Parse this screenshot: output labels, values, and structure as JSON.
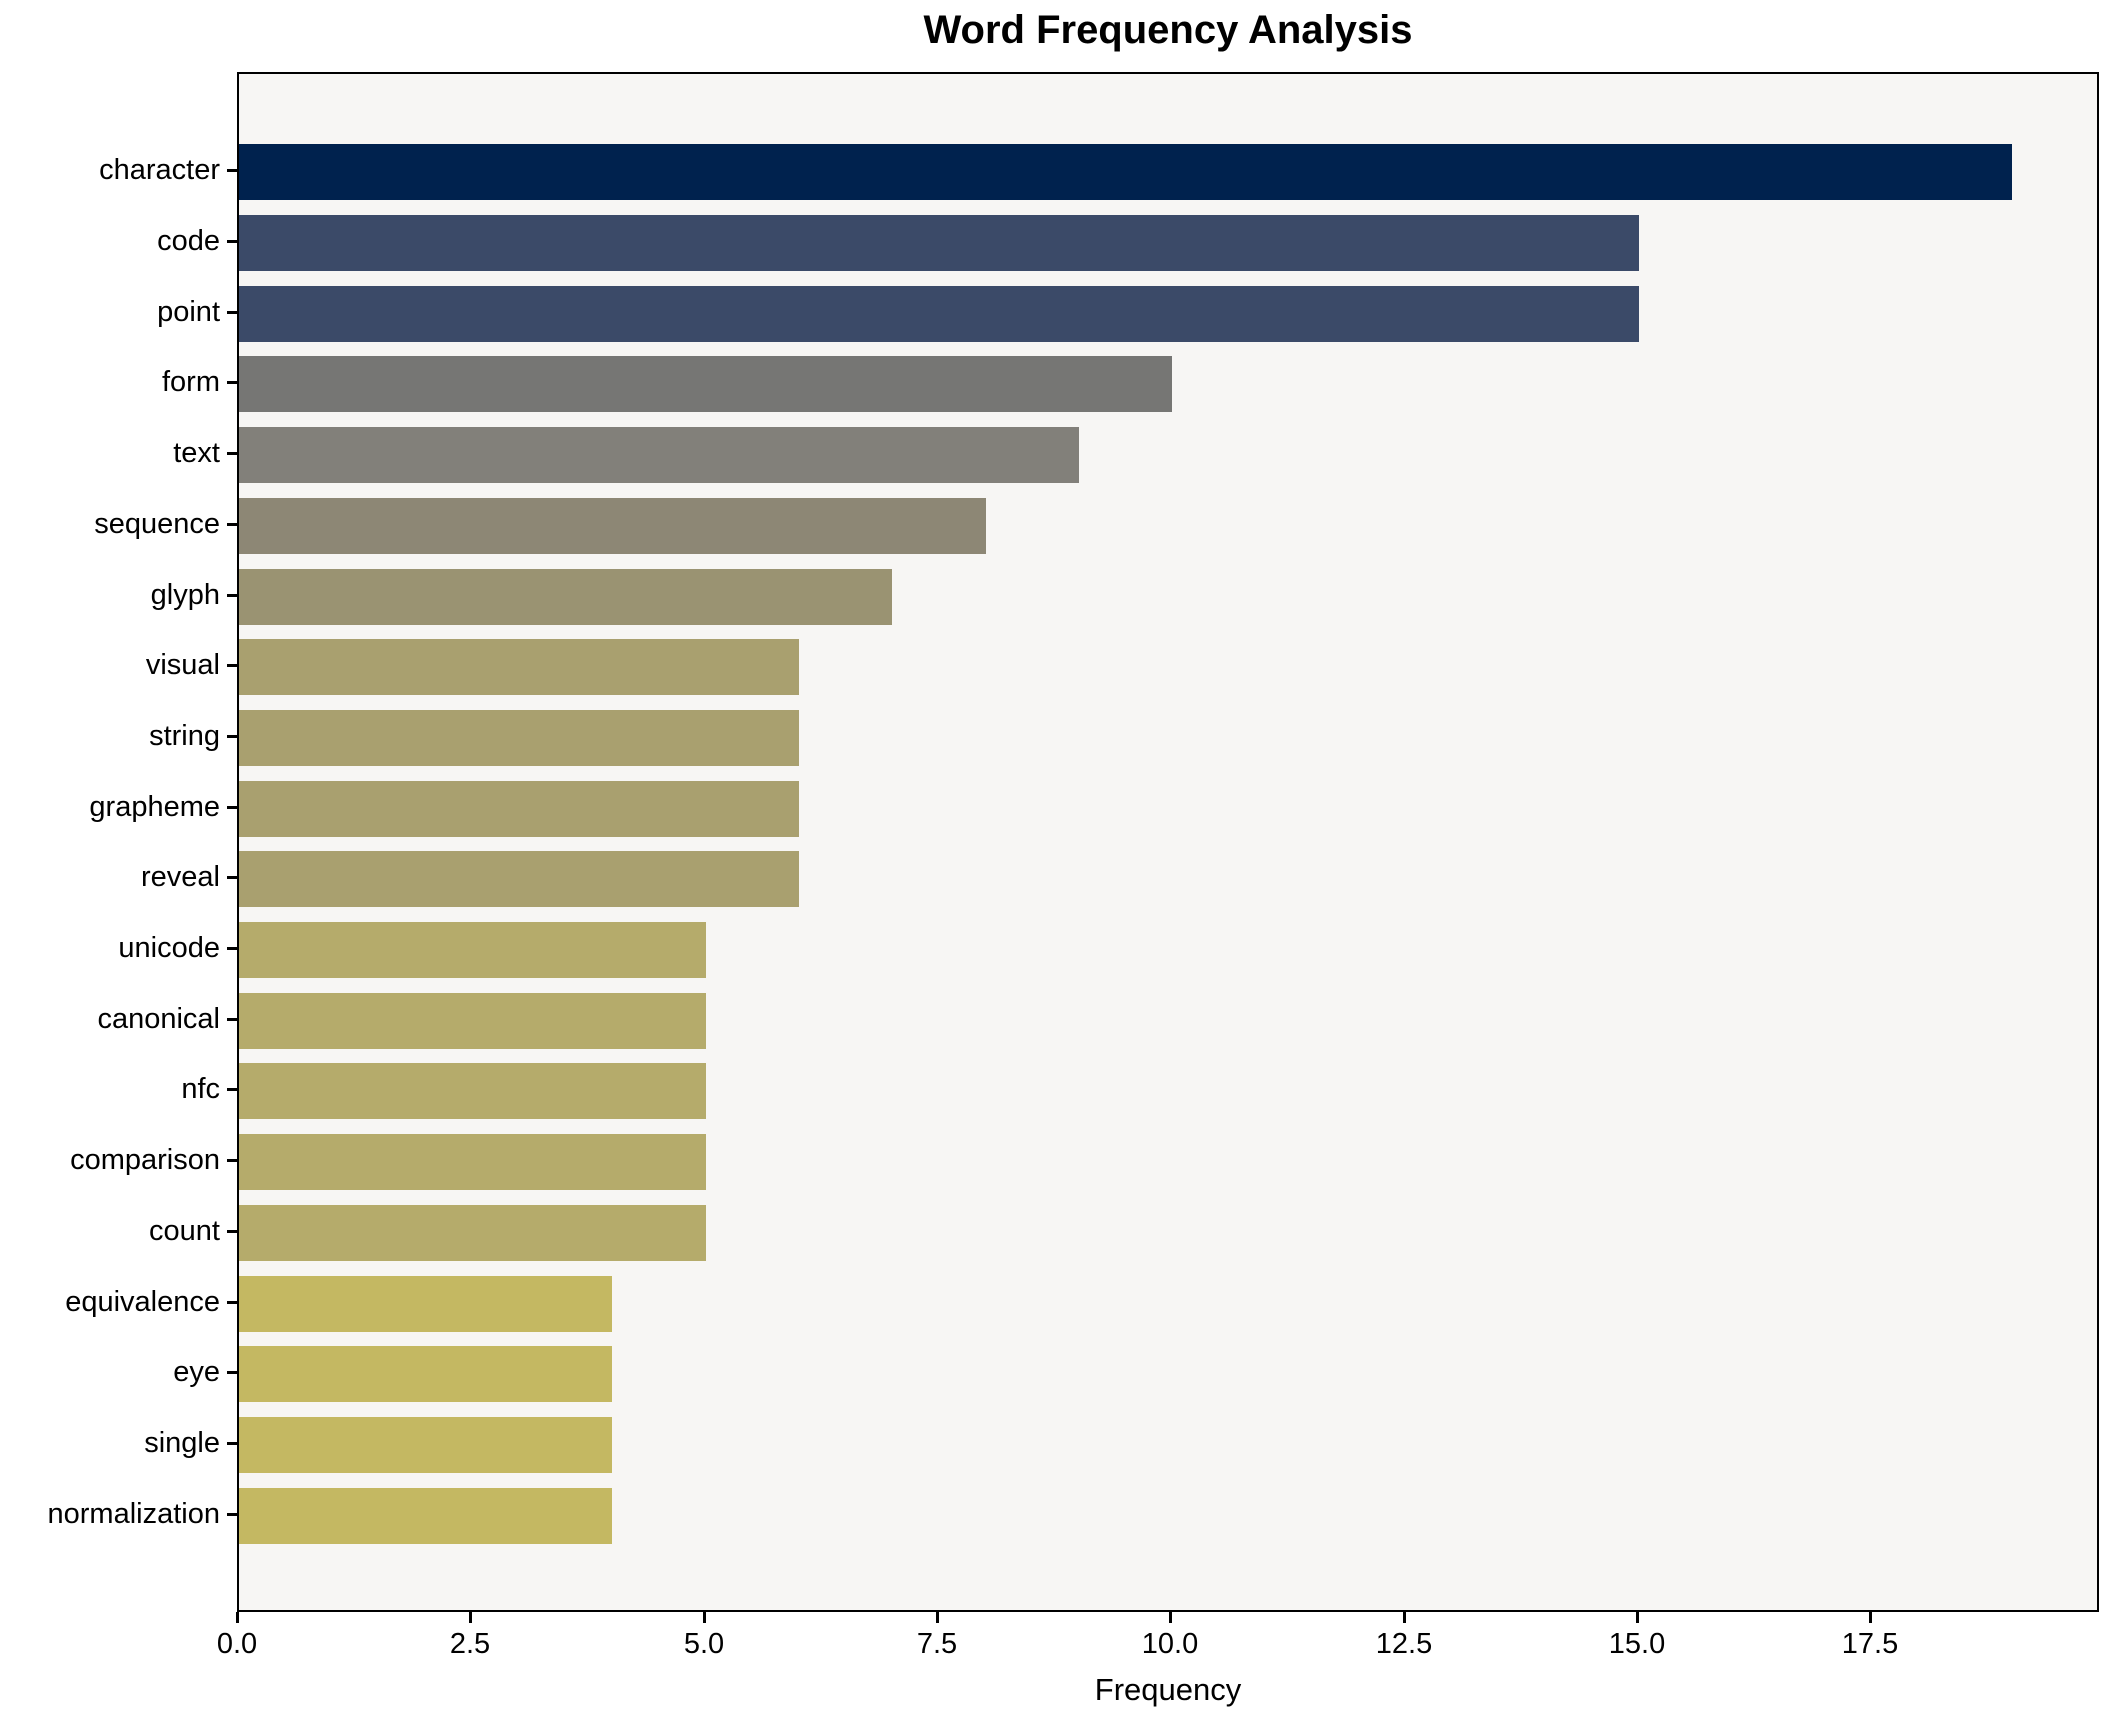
{
  "chart_data": {
    "type": "bar",
    "orientation": "horizontal",
    "title": "Word Frequency Analysis",
    "xlabel": "Frequency",
    "ylabel": "",
    "grid": false,
    "legend": null,
    "xlim": [
      0,
      19.95
    ],
    "xticks": [
      0.0,
      2.5,
      5.0,
      7.5,
      10.0,
      12.5,
      15.0,
      17.5
    ],
    "xtick_labels": [
      "0.0",
      "2.5",
      "5.0",
      "7.5",
      "10.0",
      "12.5",
      "15.0",
      "17.5"
    ],
    "categories": [
      "character",
      "code",
      "point",
      "form",
      "text",
      "sequence",
      "glyph",
      "visual",
      "string",
      "grapheme",
      "reveal",
      "unicode",
      "canonical",
      "nfc",
      "comparison",
      "count",
      "equivalence",
      "eye",
      "single",
      "normalization"
    ],
    "values": [
      19,
      15,
      15,
      10,
      9,
      8,
      7,
      6,
      6,
      6,
      6,
      5,
      5,
      5,
      5,
      5,
      4,
      4,
      4,
      4
    ],
    "bar_colors": [
      "#00224e",
      "#3b4a68",
      "#3b4a68",
      "#767674",
      "#82807a",
      "#8d8775",
      "#9a9372",
      "#a9a06f",
      "#a9a06f",
      "#a9a06f",
      "#a9a06f",
      "#b5ab6b",
      "#b5ab6b",
      "#b5ab6b",
      "#b5ab6b",
      "#b5ab6b",
      "#c4b862",
      "#c4b862",
      "#c4b862",
      "#c4b862"
    ],
    "colors": {
      "plot_background": "#f7f6f4",
      "figure_background": "#ffffff",
      "spine": "#000000",
      "text": "#000000"
    }
  }
}
